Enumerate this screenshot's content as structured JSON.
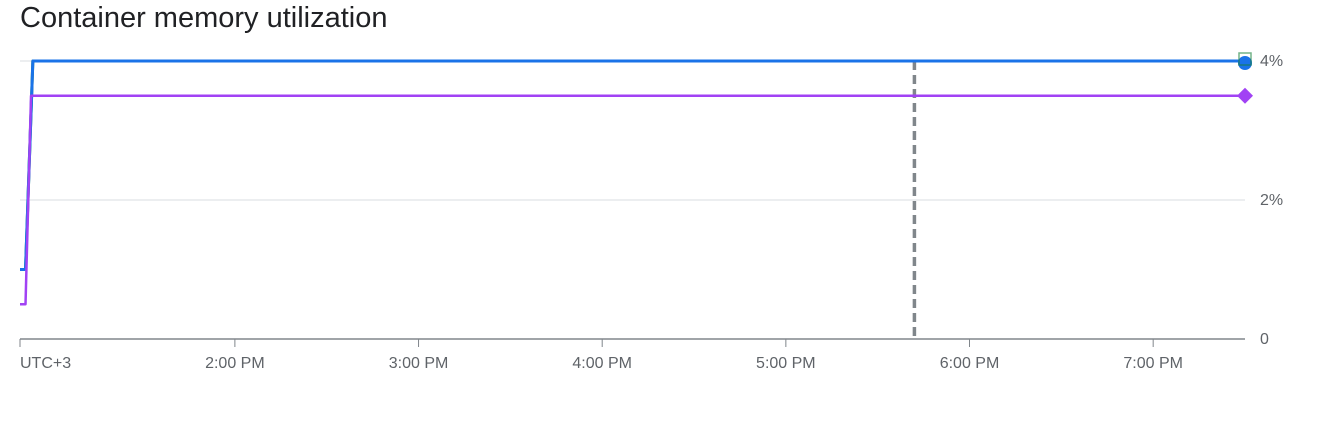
{
  "title": "Container memory utilization",
  "chart_data": {
    "type": "line",
    "timezone_label": "UTC+3",
    "x_ticks": [
      "2:00 PM",
      "3:00 PM",
      "4:00 PM",
      "5:00 PM",
      "6:00 PM",
      "7:00 PM"
    ],
    "x_tick_values": [
      14,
      15,
      16,
      17,
      18,
      19
    ],
    "xlim": [
      12.83,
      19.5
    ],
    "y_ticks": [
      "0",
      "2%",
      "4%"
    ],
    "y_tick_values": [
      0,
      2,
      4
    ],
    "ylim": [
      0,
      4
    ],
    "grid": true,
    "series": [
      {
        "color": "#1a73e8",
        "marker": "circle",
        "x": [
          12.83,
          12.86,
          12.9,
          19.5
        ],
        "y": [
          1.0,
          1.0,
          4.0,
          4.0
        ]
      },
      {
        "color": "#188038",
        "marker": "square",
        "x": [
          12.83,
          12.86,
          12.9,
          19.5
        ],
        "y": [
          1.0,
          1.0,
          4.0,
          4.0
        ]
      },
      {
        "color": "#a142f4",
        "marker": "diamond",
        "x": [
          12.83,
          12.86,
          12.89,
          19.5
        ],
        "y": [
          0.5,
          0.5,
          3.5,
          3.5
        ]
      }
    ],
    "marker_line_x": 17.7
  }
}
